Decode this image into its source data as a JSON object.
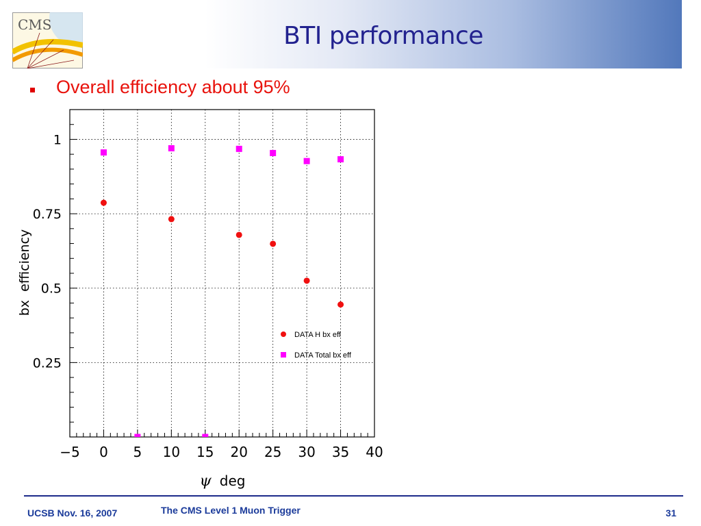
{
  "header": {
    "title": "BTI performance",
    "logo_text": "CMS"
  },
  "bullets": [
    {
      "text": "Overall efficiency about 95%"
    }
  ],
  "chart_data": {
    "type": "scatter",
    "title": "",
    "xlabel": "ψ deg",
    "ylabel": "bx efficiency",
    "xlim": [
      -5,
      40
    ],
    "ylim": [
      0,
      1.1
    ],
    "xticks": [
      -5,
      0,
      5,
      10,
      15,
      20,
      25,
      30,
      35,
      40
    ],
    "xtick_labels": [
      "−5",
      "0",
      "5",
      "10",
      "15",
      "20",
      "25",
      "30",
      "35",
      "40"
    ],
    "yticks": [
      0.25,
      0.5,
      0.75,
      1
    ],
    "ytick_labels": [
      "0.25",
      "0.5",
      "0.75",
      "1"
    ],
    "grid": true,
    "legend_position": "lower-right",
    "series": [
      {
        "name": "DATA H bx eff",
        "marker": "circle",
        "color": "#f01010",
        "x": [
          0,
          5,
          10,
          15,
          20,
          25,
          30,
          35
        ],
        "y": [
          0.787,
          0,
          0.732,
          0,
          0.679,
          0.649,
          0.525,
          0.445
        ]
      },
      {
        "name": "DATA Total bx eff",
        "marker": "square",
        "color": "#ff00ff",
        "x": [
          0,
          5,
          10,
          15,
          20,
          25,
          30,
          35
        ],
        "y": [
          0.956,
          0,
          0.97,
          0,
          0.968,
          0.954,
          0.927,
          0.933
        ]
      }
    ]
  },
  "footer": {
    "date": "UCSB Nov. 16, 2007",
    "talk_title": "The CMS Level 1 Muon Trigger",
    "page_number": "31"
  },
  "colors": {
    "title": "#22228f",
    "bullet": "#e8120c",
    "footer": "#1a3a9a",
    "footer_rule": "#1c2a8a",
    "header_gradient_end": "#5278bb"
  }
}
